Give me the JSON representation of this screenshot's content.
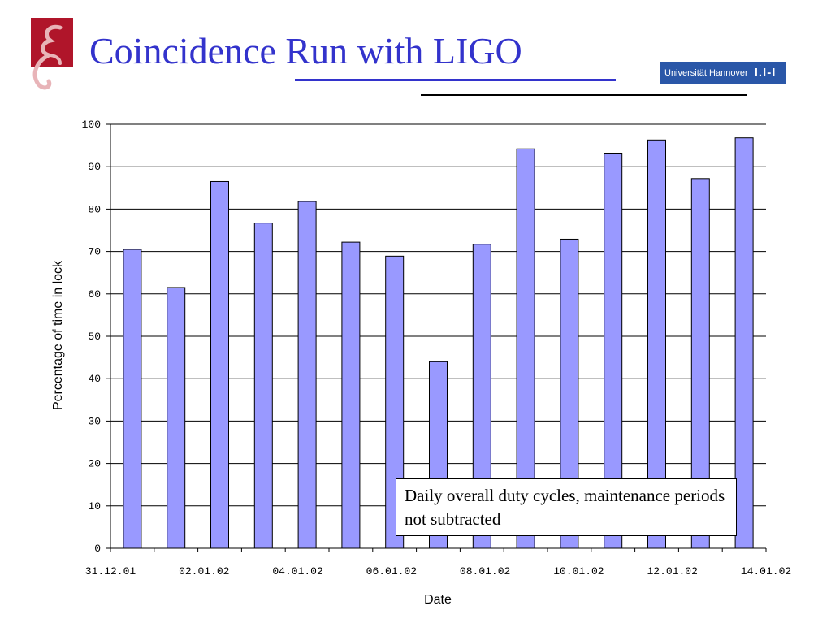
{
  "slide": {
    "title": "Coincidence Run with LIGO",
    "university_logo_text": "Universität Hannover",
    "university_logo_mark": "I.I-I"
  },
  "colors": {
    "title": "#3333cc",
    "bar_fill": "#9999ff",
    "logo_left": "#b0152a",
    "university_logo_bg": "#2a57a8"
  },
  "chart_data": {
    "type": "bar",
    "title": "",
    "xlabel": "Date",
    "ylabel": "Percentage of time in lock",
    "ylim": [
      0,
      100
    ],
    "yticks": [
      0,
      10,
      20,
      30,
      40,
      50,
      60,
      70,
      80,
      90,
      100
    ],
    "xticklabels": [
      "31.12.01",
      "02.01.02",
      "04.01.02",
      "06.01.02",
      "08.01.02",
      "10.01.02",
      "12.01.02",
      "14.01.02"
    ],
    "grid": true,
    "annotation": "Daily overall duty cycles, maintenance periods not subtracted",
    "values": [
      70.5,
      61.5,
      86.5,
      76.7,
      81.8,
      72.2,
      68.9,
      44.0,
      71.7,
      94.2,
      72.9,
      93.2,
      96.3,
      87.2,
      96.8
    ]
  }
}
